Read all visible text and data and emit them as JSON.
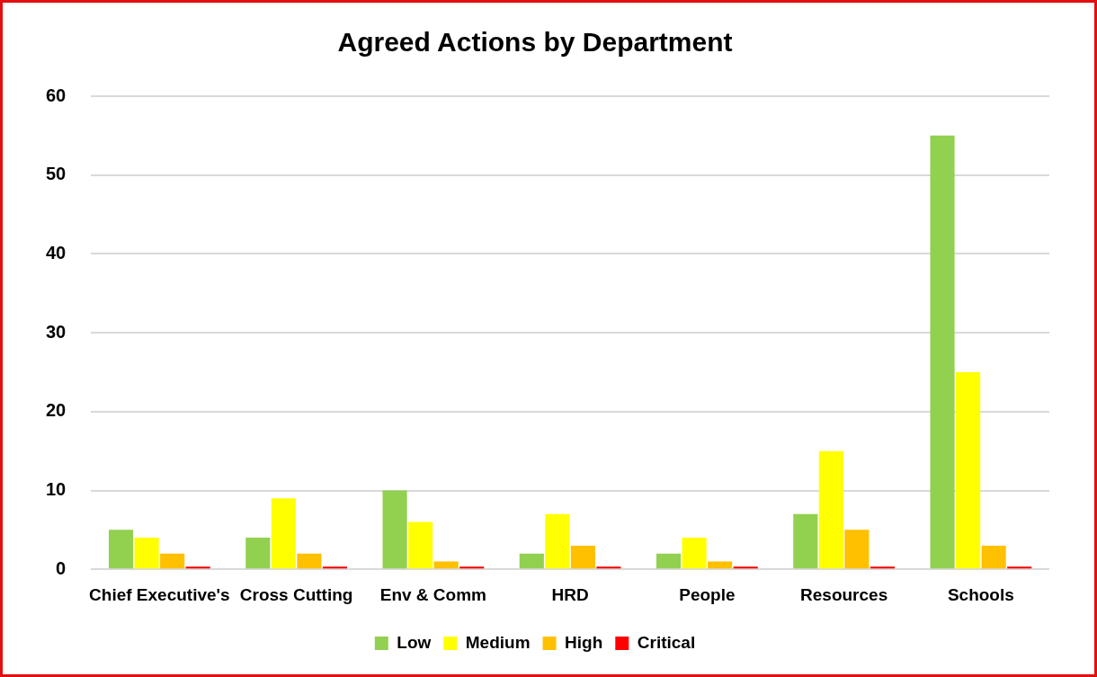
{
  "chart_data": {
    "type": "bar",
    "title": "Agreed Actions by Department",
    "categories": [
      "Chief Executive's",
      "Cross Cutting",
      "Env & Comm",
      "HRD",
      "People",
      "Resources",
      "Schools"
    ],
    "series": [
      {
        "name": "Low",
        "color": "#92d050",
        "values": [
          5,
          4,
          10,
          2,
          2,
          7,
          55
        ]
      },
      {
        "name": "Medium",
        "color": "#ffff00",
        "values": [
          4,
          9,
          6,
          7,
          4,
          15,
          25
        ]
      },
      {
        "name": "High",
        "color": "#ffc000",
        "values": [
          2,
          2,
          1,
          3,
          1,
          5,
          3
        ]
      },
      {
        "name": "Critical",
        "color": "#ff0000",
        "values": [
          0,
          0,
          0,
          0,
          0,
          0,
          0
        ]
      }
    ],
    "ylim": [
      0,
      60
    ],
    "yticks": [
      0,
      10,
      20,
      30,
      40,
      50,
      60
    ],
    "grid": "y",
    "legend": "bottom"
  }
}
